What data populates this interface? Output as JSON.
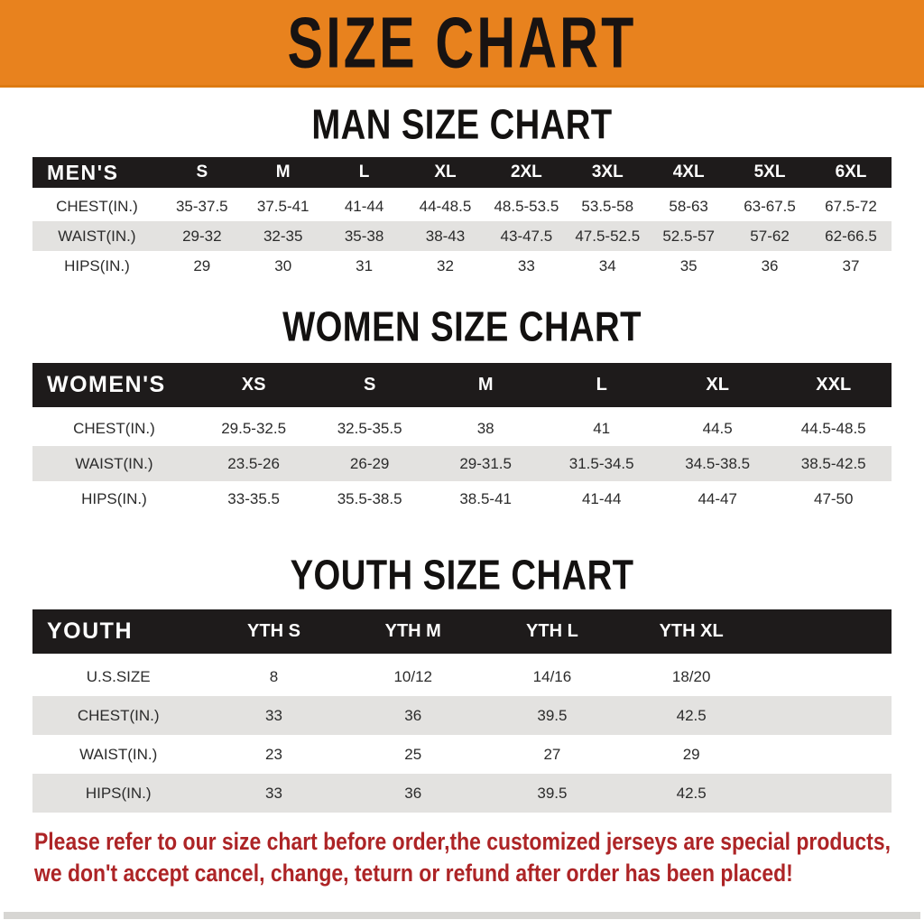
{
  "banner": {
    "title": "SIZE CHART",
    "bg_color": "#e8821e",
    "text_color": "#181312"
  },
  "chart_data": [
    {
      "type": "table",
      "title": "MAN SIZE CHART",
      "corner_label": "MEN'S",
      "columns": [
        "S",
        "M",
        "L",
        "XL",
        "2XL",
        "3XL",
        "4XL",
        "5XL",
        "6XL"
      ],
      "rows": [
        {
          "label": "CHEST(IN.)",
          "values": [
            "35-37.5",
            "37.5-41",
            "41-44",
            "44-48.5",
            "48.5-53.5",
            "53.5-58",
            "58-63",
            "63-67.5",
            "67.5-72"
          ]
        },
        {
          "label": "WAIST(IN.)",
          "values": [
            "29-32",
            "32-35",
            "35-38",
            "38-43",
            "43-47.5",
            "47.5-52.5",
            "52.5-57",
            "57-62",
            "62-66.5"
          ]
        },
        {
          "label": "HIPS(IN.)",
          "values": [
            "29",
            "30",
            "31",
            "32",
            "33",
            "34",
            "35",
            "36",
            "37"
          ]
        }
      ]
    },
    {
      "type": "table",
      "title": "WOMEN SIZE CHART",
      "corner_label": "WOMEN'S",
      "columns": [
        "XS",
        "S",
        "M",
        "L",
        "XL",
        "XXL"
      ],
      "rows": [
        {
          "label": "CHEST(IN.)",
          "values": [
            "29.5-32.5",
            "32.5-35.5",
            "38",
            "41",
            "44.5",
            "44.5-48.5"
          ]
        },
        {
          "label": "WAIST(IN.)",
          "values": [
            "23.5-26",
            "26-29",
            "29-31.5",
            "31.5-34.5",
            "34.5-38.5",
            "38.5-42.5"
          ]
        },
        {
          "label": "HIPS(IN.)",
          "values": [
            "33-35.5",
            "35.5-38.5",
            "38.5-41",
            "41-44",
            "44-47",
            "47-50"
          ]
        }
      ]
    },
    {
      "type": "table",
      "title": "YOUTH SIZE CHART",
      "corner_label": "YOUTH",
      "columns": [
        "YTH S",
        "YTH M",
        "YTH L",
        "YTH XL"
      ],
      "rows": [
        {
          "label": "U.S.SIZE",
          "values": [
            "8",
            "10/12",
            "14/16",
            "18/20"
          ]
        },
        {
          "label": "CHEST(IN.)",
          "values": [
            "33",
            "36",
            "39.5",
            "42.5"
          ]
        },
        {
          "label": "WAIST(IN.)",
          "values": [
            "23",
            "25",
            "27",
            "29"
          ]
        },
        {
          "label": "HIPS(IN.)",
          "values": [
            "33",
            "36",
            "39.5",
            "42.5"
          ]
        }
      ]
    }
  ],
  "disclaimer": {
    "line1": "Please refer to our size chart before order,the customized jerseys are special products,",
    "line2": "we don't accept cancel, change, teturn or refund after order has been placed!",
    "color": "#ad2426"
  },
  "colors": {
    "banner_orange": "#e8821e",
    "table_header_black": "#1e1b1b",
    "row_stripe_gray": "#e3e2e0",
    "disclaimer_red": "#ad2426"
  }
}
